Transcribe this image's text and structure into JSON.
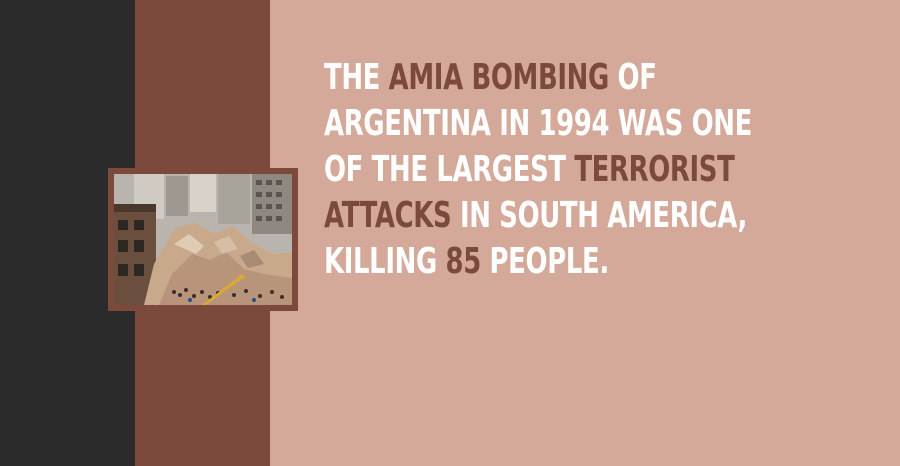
{
  "colors": {
    "dark_band": "#2b2b2b",
    "brown_band": "#7b4a3c",
    "background": "#d4a99a",
    "text_white": "#ffffff",
    "text_highlight": "#7b4a3c",
    "frame": "#7b4a3c"
  },
  "fact": {
    "lines": [
      [
        {
          "text": "THE ",
          "h": false
        },
        {
          "text": "AMIA BOMBING",
          "h": true
        },
        {
          "text": " OF",
          "h": false
        }
      ],
      [
        {
          "text": "ARGENTINA IN 1994 WAS ONE",
          "h": false
        }
      ],
      [
        {
          "text": "OF THE LARGEST ",
          "h": false
        },
        {
          "text": "TERRORIST",
          "h": true
        }
      ],
      [
        {
          "text": "ATTACKS",
          "h": true
        },
        {
          "text": " IN SOUTH AMERICA,",
          "h": false
        }
      ],
      [
        {
          "text": "KILLING ",
          "h": false
        },
        {
          "text": "85",
          "h": true
        },
        {
          "text": " PEOPLE.",
          "h": false
        }
      ]
    ]
  }
}
